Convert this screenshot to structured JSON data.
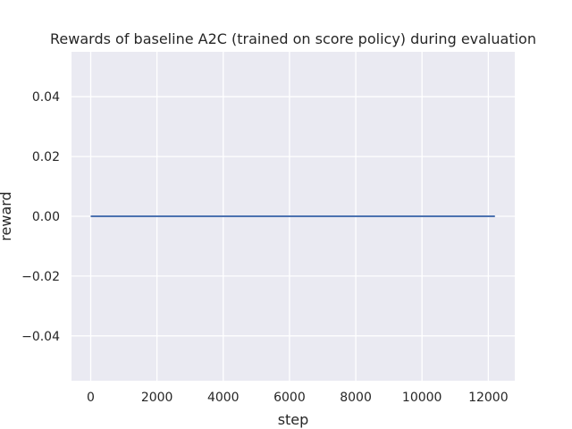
{
  "chart_data": {
    "type": "line",
    "title": "Rewards of baseline A2C (trained on score policy) during evaluation",
    "xlabel": "step",
    "ylabel": "reward",
    "xlim": [
      -580,
      12800
    ],
    "ylim": [
      -0.055,
      0.055
    ],
    "xticks": [
      0,
      2000,
      4000,
      6000,
      8000,
      10000,
      12000
    ],
    "xtick_labels": [
      "0",
      "2000",
      "4000",
      "6000",
      "8000",
      "10000",
      "12000"
    ],
    "yticks": [
      -0.04,
      -0.02,
      0.0,
      0.02,
      0.04
    ],
    "ytick_labels": [
      "−0.04",
      "−0.02",
      "0.00",
      "0.02",
      "0.04"
    ],
    "grid": true,
    "background": "#eaeaf2",
    "grid_color": "#ffffff",
    "series": [
      {
        "color": "#4c72b0",
        "x": [
          0,
          12200
        ],
        "y": [
          0.0,
          0.0
        ]
      }
    ]
  }
}
